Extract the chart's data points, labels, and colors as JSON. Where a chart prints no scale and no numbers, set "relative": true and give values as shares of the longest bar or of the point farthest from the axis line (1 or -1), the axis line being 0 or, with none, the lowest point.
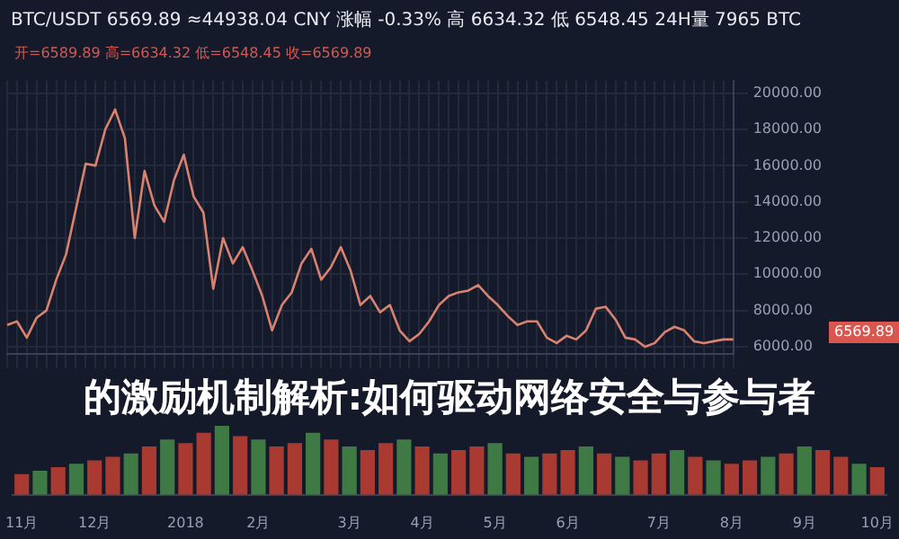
{
  "chart_data": [
    {
      "type": "line",
      "subtitle": "BTC/USDT  6569.89  ≈44938.04 CNY  涨幅 -0.33%  高 6634.32  低 6548.45  24H量 7965 BTC",
      "annotations": [
        "开=6589.89 高=6634.32 低=6548.45 收=6569.89",
        "6569.89"
      ],
      "categories": [
        null,
        null,
        null,
        null,
        null,
        null,
        null,
        null,
        null,
        null,
        null,
        null,
        null,
        null,
        null,
        null,
        null,
        null,
        null,
        null,
        null,
        null,
        null,
        null,
        null,
        null,
        null,
        null,
        null,
        null,
        null,
        null,
        null,
        null,
        null,
        null,
        null,
        null,
        null,
        null,
        null,
        null,
        null,
        null,
        null,
        null,
        null,
        null,
        null,
        null,
        null,
        null,
        null,
        null,
        null,
        null,
        null,
        null,
        null,
        null,
        null,
        null,
        null,
        null,
        null,
        null,
        null,
        null,
        null,
        null,
        null,
        null,
        null,
        null,
        null
      ],
      "series": [
        {
          "color": "#d9826f",
          "values": [
            7200,
            7400,
            6500,
            7600,
            8000,
            9700,
            11100,
            13600,
            16100,
            16000,
            18000,
            19100,
            17500,
            12000,
            15700,
            13800,
            12900,
            15200,
            16600,
            14300,
            13400,
            9200,
            12000,
            10600,
            11500,
            10200,
            8800,
            6900,
            8300,
            9000,
            10600,
            11400,
            9700,
            10400,
            11500,
            10200,
            8300,
            8800,
            7900,
            8300,
            6900,
            6300,
            6700,
            7400,
            8300,
            8800,
            9000,
            9100,
            9400,
            8800,
            8300,
            7700,
            7200,
            7400,
            7400,
            6500,
            6200,
            6600,
            6400,
            6900,
            8100,
            8200,
            7500,
            6500,
            6400,
            6000,
            6200,
            6800,
            7100,
            6900,
            6300,
            6200,
            6300,
            6400,
            6400
          ]
        }
      ],
      "ylim": [
        5600,
        20700
      ],
      "yticks": [
        {
          "value": 6000,
          "label": "6000.00"
        },
        {
          "value": 8000,
          "label": "8000.00"
        },
        {
          "value": 10000,
          "label": "10000.00"
        },
        {
          "value": 12000,
          "label": "12000.00"
        },
        {
          "value": 14000,
          "label": "14000.00"
        },
        {
          "value": 16000,
          "label": "16000.00"
        },
        {
          "value": 18000,
          "label": "18000.00"
        },
        {
          "value": 20000,
          "label": "20000.00"
        }
      ],
      "grid": true,
      "legend": false,
      "marker": "none",
      "line_style": "solid",
      "tick_labels": "y"
    },
    {
      "type": "bar",
      "title": "的激励机制解析:如何驱动网络安全与参与者",
      "relative": true,
      "categories": [
        "11月",
        null,
        null,
        null,
        "12月",
        null,
        null,
        null,
        null,
        "2018",
        null,
        null,
        null,
        "2月",
        null,
        null,
        null,
        null,
        "3月",
        null,
        null,
        null,
        "4月",
        null,
        null,
        null,
        "5月",
        null,
        null,
        null,
        "6月",
        null,
        null,
        null,
        null,
        "7月",
        null,
        null,
        null,
        "8月",
        null,
        null,
        null,
        "9月",
        null,
        null,
        null,
        "10月"
      ],
      "values": [
        0.3,
        0.35,
        0.4,
        0.45,
        0.5,
        0.55,
        0.6,
        0.7,
        0.8,
        0.75,
        0.9,
        1,
        0.85,
        0.8,
        0.7,
        0.75,
        0.9,
        0.8,
        0.7,
        0.65,
        0.75,
        0.8,
        0.7,
        0.6,
        0.65,
        0.7,
        0.75,
        0.6,
        0.55,
        0.6,
        0.65,
        0.7,
        0.6,
        0.55,
        0.5,
        0.6,
        0.65,
        0.55,
        0.5,
        0.45,
        0.5,
        0.55,
        0.6,
        0.7,
        0.65,
        0.55,
        0.45,
        0.4
      ],
      "colors": [
        "#a83a32",
        "#3f7a45",
        "#a83a32",
        "#3f7a45",
        "#a83a32",
        "#a83a32",
        "#3f7a45",
        "#a83a32",
        "#3f7a45",
        "#a83a32",
        "#a83a32",
        "#3f7a45",
        "#a83a32",
        "#3f7a45",
        "#a83a32",
        "#a83a32",
        "#3f7a45",
        "#a83a32",
        "#3f7a45",
        "#a83a32",
        "#a83a32",
        "#3f7a45",
        "#a83a32",
        "#3f7a45",
        "#a83a32",
        "#a83a32",
        "#3f7a45",
        "#a83a32",
        "#3f7a45",
        "#a83a32",
        "#a83a32",
        "#3f7a45",
        "#a83a32",
        "#3f7a45",
        "#a83a32",
        "#a83a32",
        "#3f7a45",
        "#a83a32",
        "#3f7a45",
        "#a83a32",
        "#a83a32",
        "#3f7a45",
        "#a83a32",
        "#3f7a45",
        "#a83a32",
        "#a83a32",
        "#3f7a45",
        "#a83a32"
      ],
      "grid": false,
      "legend": false
    }
  ]
}
